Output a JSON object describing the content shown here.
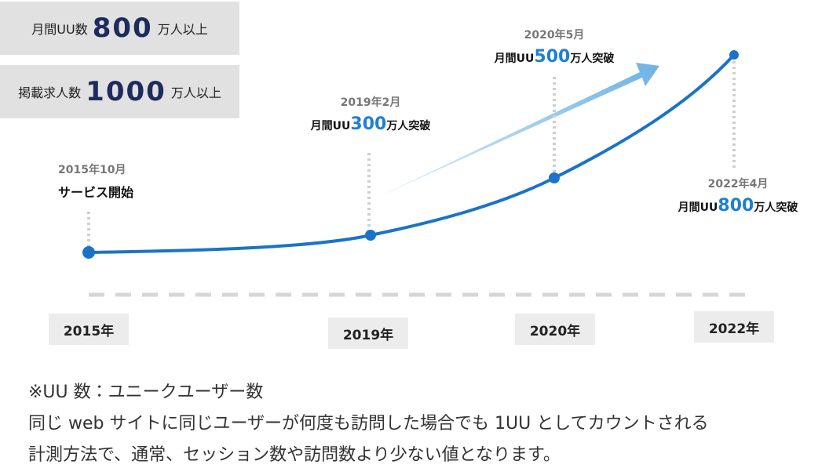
{
  "stats": [
    {
      "label": "月間UU数",
      "value": "800",
      "suffix": "万人以上"
    },
    {
      "label": "掲載求人数",
      "value": "1000",
      "suffix": "万人以上"
    }
  ],
  "milestones": [
    {
      "date": "2015年10月",
      "text": "サービス開始"
    },
    {
      "date": "2019年2月",
      "prefix": "月間UU",
      "value": "300",
      "suffix": "万人突破"
    },
    {
      "date": "2020年5月",
      "prefix": "月間UU",
      "value": "500",
      "suffix": "万人突破"
    },
    {
      "date": "2022年4月",
      "prefix": "月間UU",
      "value": "800",
      "suffix": "万人突破"
    }
  ],
  "years": [
    "2015年",
    "2019年",
    "2020年",
    "2022年"
  ],
  "notes": [
    "※UU 数：ユニークユーザー数",
    "同じ web サイトに同じユーザーが何度も訪問した場合でも 1UU としてカウントされる",
    "計測方法で、通常、セッション数や訪問数より少ない値となります。"
  ]
}
